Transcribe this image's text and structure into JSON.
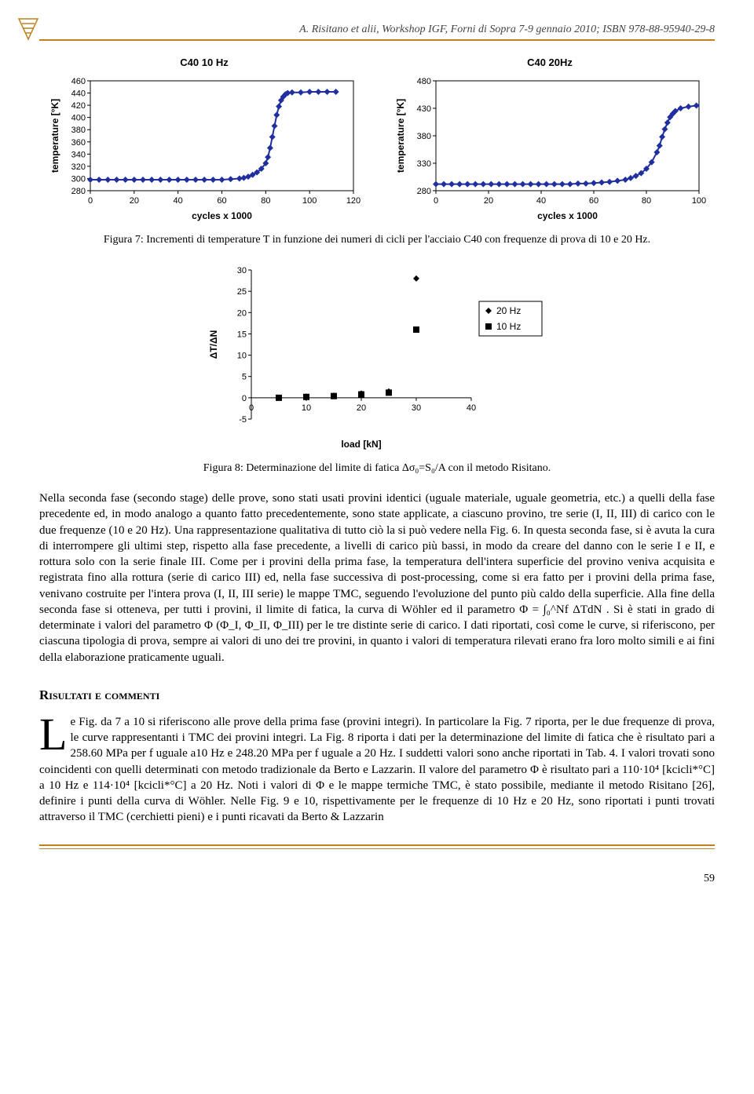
{
  "header": {
    "citation": "A. Risitano et alii, Workshop IGF, Forni di Sopra 7-9 gennaio 2010; ISBN 978-88-95940-29-8"
  },
  "chartA": {
    "type": "line",
    "title": "C40 10 Hz",
    "xlabel": "cycles x 1000",
    "ylabel": "temperature [°K]",
    "xlim": [
      0,
      120
    ],
    "xtick_step": 20,
    "ylim": [
      280,
      460
    ],
    "ytick_step": 20,
    "series_color": "#1f2f9f",
    "marker": "diamond",
    "data": [
      [
        0,
        298
      ],
      [
        4,
        298
      ],
      [
        8,
        298
      ],
      [
        12,
        298
      ],
      [
        16,
        298
      ],
      [
        20,
        298
      ],
      [
        24,
        298
      ],
      [
        28,
        298
      ],
      [
        32,
        298
      ],
      [
        36,
        298
      ],
      [
        40,
        298
      ],
      [
        44,
        298
      ],
      [
        48,
        298
      ],
      [
        52,
        298
      ],
      [
        56,
        298
      ],
      [
        60,
        298
      ],
      [
        64,
        299
      ],
      [
        68,
        300
      ],
      [
        70,
        301
      ],
      [
        72,
        303
      ],
      [
        74,
        306
      ],
      [
        76,
        310
      ],
      [
        78,
        316
      ],
      [
        80,
        325
      ],
      [
        81,
        335
      ],
      [
        82,
        350
      ],
      [
        83,
        368
      ],
      [
        84,
        386
      ],
      [
        85,
        404
      ],
      [
        86,
        418
      ],
      [
        87,
        428
      ],
      [
        88,
        434
      ],
      [
        89,
        438
      ],
      [
        90,
        440
      ],
      [
        92,
        441
      ],
      [
        96,
        441
      ],
      [
        100,
        442
      ],
      [
        104,
        442
      ],
      [
        108,
        442
      ],
      [
        112,
        442
      ]
    ]
  },
  "chartB": {
    "type": "line",
    "title": "C40 20Hz",
    "xlabel": "cycles x 1000",
    "ylabel": "temperature [°K]",
    "xlim": [
      0,
      100
    ],
    "xtick_step": 20,
    "ylim": [
      280,
      480
    ],
    "ytick_step": 50,
    "series_color": "#1f2f9f",
    "marker": "diamond",
    "data": [
      [
        0,
        292
      ],
      [
        3,
        292
      ],
      [
        6,
        292
      ],
      [
        9,
        292
      ],
      [
        12,
        292
      ],
      [
        15,
        292
      ],
      [
        18,
        292
      ],
      [
        21,
        292
      ],
      [
        24,
        292
      ],
      [
        27,
        292
      ],
      [
        30,
        292
      ],
      [
        33,
        292
      ],
      [
        36,
        292
      ],
      [
        39,
        292
      ],
      [
        42,
        292
      ],
      [
        45,
        292
      ],
      [
        48,
        292
      ],
      [
        51,
        292
      ],
      [
        54,
        293
      ],
      [
        57,
        293
      ],
      [
        60,
        294
      ],
      [
        63,
        295
      ],
      [
        66,
        296
      ],
      [
        69,
        298
      ],
      [
        72,
        300
      ],
      [
        74,
        303
      ],
      [
        76,
        307
      ],
      [
        78,
        312
      ],
      [
        80,
        320
      ],
      [
        82,
        332
      ],
      [
        84,
        350
      ],
      [
        85,
        362
      ],
      [
        86,
        378
      ],
      [
        87,
        392
      ],
      [
        88,
        404
      ],
      [
        89,
        414
      ],
      [
        90,
        420
      ],
      [
        91,
        425
      ],
      [
        93,
        430
      ],
      [
        96,
        433
      ],
      [
        99,
        435
      ]
    ]
  },
  "caption7": "Figura 7: Incrementi di temperature T in funzione dei numeri di cicli per l'acciaio C40 con frequenze di prova di 10 e 20 Hz.",
  "chartC": {
    "type": "scatter",
    "xlabel": "load [kN]",
    "ylabel": "ΔT/ΔN",
    "xlim": [
      0,
      40
    ],
    "xtick_step": 10,
    "ylim": [
      -5,
      30
    ],
    "ytick_step": 5,
    "legend": [
      {
        "label": "20 Hz",
        "marker": "diamond",
        "color": "#000"
      },
      {
        "label": "10 Hz",
        "marker": "square",
        "color": "#000"
      }
    ],
    "points20": [
      [
        5,
        0
      ],
      [
        10,
        0.3
      ],
      [
        15,
        0.5
      ],
      [
        20,
        1
      ],
      [
        25,
        1.5
      ],
      [
        30,
        28
      ]
    ],
    "points10": [
      [
        5,
        0
      ],
      [
        10,
        0.2
      ],
      [
        15,
        0.4
      ],
      [
        20,
        0.8
      ],
      [
        25,
        1.2
      ],
      [
        30,
        16
      ]
    ]
  },
  "caption8": "Figura 8: Determinazione del limite di fatica Δσ₀=S₀/A con il metodo Risitano.",
  "para1": "Nella seconda fase (secondo stage) delle prove, sono stati usati provini identici (uguale materiale, uguale geometria, etc.) a quelli della fase precedente ed, in modo analogo a quanto fatto precedentemente, sono state applicate, a ciascuno provino, tre serie (I, II, III) di carico con le due frequenze (10 e 20 Hz). Una rappresentazione qualitativa di tutto ciò la si può vedere nella Fig. 6. In questa seconda fase, si è avuta la cura di interrompere gli ultimi step, rispetto alla fase precedente, a livelli di carico più bassi, in modo da creare del danno con le serie I e II, e rottura solo con la serie finale III. Come per i provini della prima fase, la temperatura dell'intera superficie del provino veniva acquisita e registrata fino alla rottura (serie di carico III) ed, nella fase successiva di post-processing, come si era fatto per i provini della prima fase, venivano costruite per l'intera prova (I, II, III serie) le mappe TMC, seguendo l'evoluzione del punto più caldo della superficie. Alla fine della seconda fase si otteneva, per tutti i provini, il limite di fatica, la curva di Wöhler ed il parametro Φ = ∫₀^Nf ΔTdN . Si è stati in grado di determinate i valori del parametro Φ (Φ_I, Φ_II, Φ_III) per le tre distinte serie di carico. I dati riportati, così come le curve, si riferiscono, per ciascuna tipologia di prova, sempre ai valori di uno dei tre provini, in quanto i valori di temperatura rilevati erano fra loro molto simili e ai fini della elaborazione praticamente uguali.",
  "sectionTitle": "Risultati e commenti",
  "para2": "e Fig. da 7 a 10 si riferiscono alle prove della prima fase (provini integri).\nIn particolare la Fig. 7 riporta, per le due frequenze di prova, le curve rappresentanti i TMC dei provini integri. La Fig. 8 riporta i dati per la determinazione del limite di fatica che è risultato pari a 258.60 MPa per f uguale a10 Hz e 248.20 MPa per f uguale a 20 Hz. I suddetti valori sono anche riportati in Tab. 4. I valori trovati sono coincidenti con quelli determinati con metodo tradizionale da Berto e Lazzarin. Il valore del parametro Φ è risultato pari a 110·10⁴ [kcicli*°C] a 10 Hz e 114·10⁴ [kcicli*°C] a 20 Hz. Noti i valori di Φ e le mappe termiche TMC, è stato possibile, mediante il metodo Risitano [26], definire i punti della curva di Wöhler. Nelle Fig. 9 e 10, rispettivamente per le frequenze di 10 Hz e 20 Hz, sono riportati i punti trovati attraverso il TMC (cerchietti pieni) e i punti ricavati da Berto & Lazzarin",
  "pageNumber": "59",
  "style": {
    "accent": "#c08020",
    "chart_series": "#1f2f9f",
    "marker_size": 4
  }
}
